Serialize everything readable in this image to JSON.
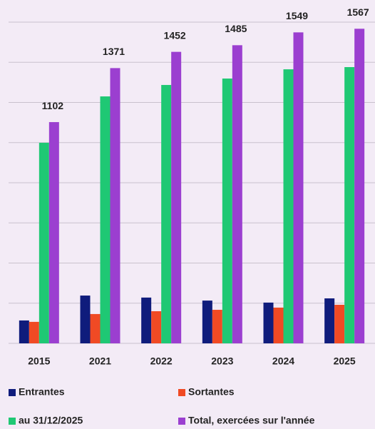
{
  "chart_data": {
    "type": "bar",
    "categories": [
      "2015",
      "2021",
      "2022",
      "2023",
      "2024",
      "2025"
    ],
    "series": [
      {
        "name": "Entrantes",
        "color": "#0f1c7c",
        "values": [
          114,
          238,
          228,
          213,
          203,
          224
        ]
      },
      {
        "name": "Sortantes",
        "color": "#f04a24",
        "values": [
          107,
          146,
          160,
          167,
          178,
          192
        ]
      },
      {
        "name": "au 31/12/2025",
        "color": "#1fc874",
        "values": [
          999,
          1230,
          1287,
          1319,
          1365,
          1376
        ]
      },
      {
        "name": "Total, exercées sur l'année",
        "color": "#9b3fd0",
        "values": [
          1102,
          1371,
          1452,
          1485,
          1549,
          1567
        ],
        "data_labels": true
      }
    ],
    "ylim": [
      0,
      1600
    ],
    "yticks": [
      0,
      200,
      400,
      600,
      800,
      1000,
      1200,
      1400,
      1600
    ],
    "grid": true
  }
}
